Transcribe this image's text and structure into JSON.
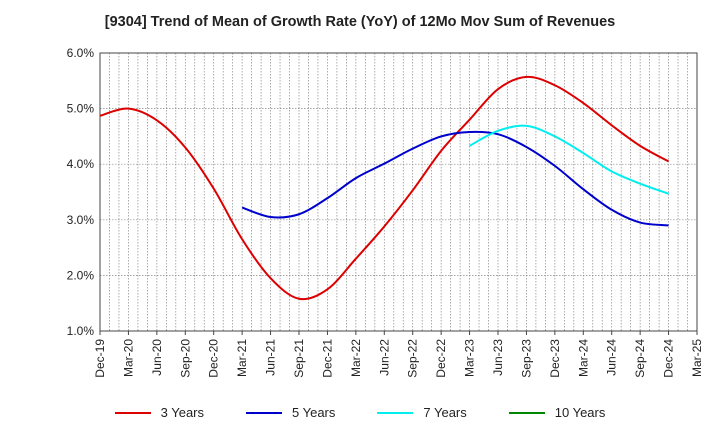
{
  "chart_data": {
    "type": "line",
    "title": "[9304]  Trend of Mean of Growth Rate (YoY) of 12Mo Mov Sum of Revenues",
    "xlabel": "",
    "ylabel": "",
    "ylim": [
      1.0,
      6.0
    ],
    "yticks": [
      "1.0%",
      "2.0%",
      "3.0%",
      "4.0%",
      "5.0%",
      "6.0%"
    ],
    "categories": [
      "Dec-19",
      "Mar-20",
      "Jun-20",
      "Sep-20",
      "Dec-20",
      "Mar-21",
      "Jun-21",
      "Sep-21",
      "Dec-21",
      "Mar-22",
      "Jun-22",
      "Sep-22",
      "Dec-22",
      "Mar-23",
      "Jun-23",
      "Sep-23",
      "Dec-23",
      "Mar-24",
      "Jun-24",
      "Sep-24",
      "Dec-24",
      "Mar-25"
    ],
    "grid": true,
    "legend_position": "bottom",
    "series": [
      {
        "name": "3 Years",
        "color": "#dd0000",
        "values": [
          4.87,
          5.0,
          4.79,
          4.3,
          3.56,
          2.65,
          1.95,
          1.58,
          1.75,
          2.3,
          2.88,
          3.53,
          4.24,
          4.8,
          5.35,
          5.57,
          5.42,
          5.1,
          4.7,
          4.33,
          4.05,
          null
        ]
      },
      {
        "name": "5 Years",
        "color": "#0000cc",
        "values": [
          null,
          null,
          null,
          null,
          null,
          3.22,
          3.05,
          3.1,
          3.39,
          3.75,
          4.01,
          4.28,
          4.5,
          4.58,
          4.54,
          4.31,
          3.97,
          3.55,
          3.18,
          2.95,
          2.9,
          null
        ]
      },
      {
        "name": "7 Years",
        "color": "#00eeee",
        "values": [
          null,
          null,
          null,
          null,
          null,
          null,
          null,
          null,
          null,
          null,
          null,
          null,
          null,
          4.33,
          4.6,
          4.69,
          4.5,
          4.2,
          3.87,
          3.65,
          3.47,
          null
        ]
      },
      {
        "name": "10 Years",
        "color": "#008800",
        "values": [
          null,
          null,
          null,
          null,
          null,
          null,
          null,
          null,
          null,
          null,
          null,
          null,
          null,
          null,
          null,
          null,
          null,
          null,
          null,
          null,
          null,
          null
        ]
      }
    ]
  }
}
